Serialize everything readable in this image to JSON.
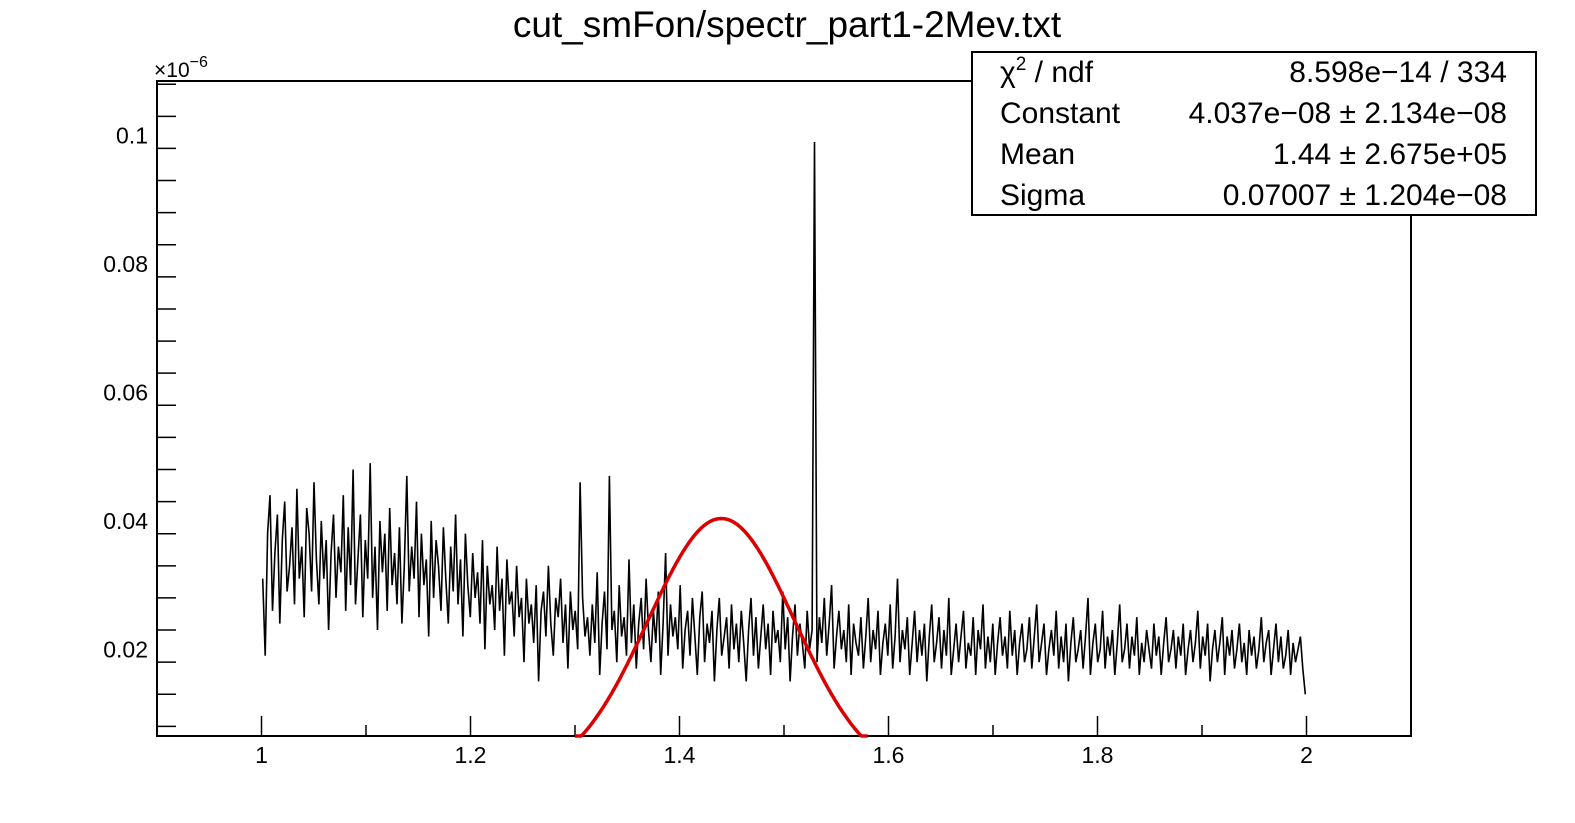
{
  "chart_data": {
    "type": "line",
    "title": "cut_smFon/spectr_part1-2Mev.txt",
    "xlabel": "",
    "ylabel": "",
    "xlim": [
      0.9,
      2.1
    ],
    "ylim": [
      0.0065,
      0.1085
    ],
    "y_exponent_label": "×10",
    "y_exponent": "−6",
    "x_ticks": [
      {
        "value": 1.0,
        "label": "1"
      },
      {
        "value": 1.2,
        "label": "1.2"
      },
      {
        "value": 1.4,
        "label": "1.4"
      },
      {
        "value": 1.6,
        "label": "1.6"
      },
      {
        "value": 1.8,
        "label": "1.8"
      },
      {
        "value": 2.0,
        "label": "2"
      }
    ],
    "y_ticks": [
      {
        "value": 0.02,
        "label": "0.02"
      },
      {
        "value": 0.04,
        "label": "0.04"
      },
      {
        "value": 0.06,
        "label": "0.06"
      },
      {
        "value": 0.08,
        "label": "0.08"
      },
      {
        "value": 0.1,
        "label": "0.1"
      }
    ],
    "grid": false,
    "series": [
      {
        "kind": "histogram",
        "color": "#000000",
        "x_start": 1.0,
        "x_end": 2.0,
        "values": [
          0.031,
          0.019,
          0.038,
          0.044,
          0.026,
          0.035,
          0.041,
          0.024,
          0.037,
          0.043,
          0.029,
          0.033,
          0.039,
          0.027,
          0.045,
          0.031,
          0.036,
          0.025,
          0.042,
          0.038,
          0.029,
          0.046,
          0.034,
          0.027,
          0.04,
          0.031,
          0.037,
          0.023,
          0.035,
          0.041,
          0.028,
          0.036,
          0.032,
          0.044,
          0.026,
          0.039,
          0.03,
          0.048,
          0.027,
          0.034,
          0.041,
          0.025,
          0.037,
          0.031,
          0.049,
          0.028,
          0.036,
          0.023,
          0.04,
          0.032,
          0.038,
          0.026,
          0.042,
          0.03,
          0.035,
          0.027,
          0.039,
          0.024,
          0.033,
          0.047,
          0.029,
          0.036,
          0.031,
          0.043,
          0.025,
          0.038,
          0.03,
          0.034,
          0.022,
          0.04,
          0.028,
          0.037,
          0.033,
          0.026,
          0.039,
          0.031,
          0.024,
          0.036,
          0.029,
          0.041,
          0.027,
          0.034,
          0.022,
          0.038,
          0.03,
          0.025,
          0.035,
          0.028,
          0.032,
          0.024,
          0.037,
          0.02,
          0.033,
          0.027,
          0.03,
          0.023,
          0.036,
          0.026,
          0.031,
          0.019,
          0.034,
          0.027,
          0.029,
          0.022,
          0.033,
          0.025,
          0.028,
          0.018,
          0.031,
          0.024,
          0.027,
          0.021,
          0.03,
          0.015,
          0.026,
          0.029,
          0.022,
          0.033,
          0.024,
          0.019,
          0.028,
          0.025,
          0.031,
          0.021,
          0.027,
          0.017,
          0.029,
          0.023,
          0.026,
          0.02,
          0.046,
          0.028,
          0.022,
          0.025,
          0.019,
          0.027,
          0.021,
          0.032,
          0.016,
          0.024,
          0.029,
          0.02,
          0.047,
          0.023,
          0.026,
          0.018,
          0.03,
          0.022,
          0.025,
          0.019,
          0.034,
          0.021,
          0.027,
          0.017,
          0.024,
          0.028,
          0.02,
          0.031,
          0.023,
          0.018,
          0.026,
          0.021,
          0.029,
          0.016,
          0.024,
          0.035,
          0.019,
          0.027,
          0.022,
          0.025,
          0.02,
          0.03,
          0.017,
          0.023,
          0.026,
          0.019,
          0.028,
          0.022,
          0.016,
          0.025,
          0.029,
          0.018,
          0.024,
          0.021,
          0.026,
          0.015,
          0.023,
          0.028,
          0.019,
          0.022,
          0.025,
          0.017,
          0.027,
          0.02,
          0.024,
          0.018,
          0.026,
          0.021,
          0.015,
          0.023,
          0.028,
          0.019,
          0.025,
          0.017,
          0.022,
          0.027,
          0.02,
          0.024,
          0.016,
          0.026,
          0.021,
          0.023,
          0.018,
          0.029,
          0.02,
          0.025,
          0.015,
          0.022,
          0.027,
          0.019,
          0.024,
          0.021,
          0.017,
          0.026,
          0.02,
          0.023,
          0.099,
          0.018,
          0.025,
          0.021,
          0.028,
          0.019,
          0.024,
          0.03,
          0.017,
          0.022,
          0.026,
          0.02,
          0.023,
          0.018,
          0.027,
          0.016,
          0.024,
          0.021,
          0.019,
          0.025,
          0.017,
          0.022,
          0.028,
          0.018,
          0.023,
          0.02,
          0.026,
          0.016,
          0.021,
          0.024,
          0.019,
          0.027,
          0.017,
          0.022,
          0.031,
          0.018,
          0.023,
          0.02,
          0.025,
          0.016,
          0.021,
          0.026,
          0.018,
          0.023,
          0.019,
          0.024,
          0.015,
          0.022,
          0.027,
          0.018,
          0.021,
          0.025,
          0.017,
          0.023,
          0.019,
          0.028,
          0.016,
          0.02,
          0.024,
          0.018,
          0.022,
          0.026,
          0.017,
          0.021,
          0.019,
          0.025,
          0.016,
          0.023,
          0.02,
          0.027,
          0.017,
          0.022,
          0.018,
          0.024,
          0.016,
          0.021,
          0.025,
          0.019,
          0.022,
          0.017,
          0.026,
          0.019,
          0.023,
          0.016,
          0.021,
          0.024,
          0.018,
          0.02,
          0.025,
          0.017,
          0.022,
          0.027,
          0.018,
          0.021,
          0.024,
          0.016,
          0.02,
          0.023,
          0.019,
          0.026,
          0.017,
          0.022,
          0.018,
          0.024,
          0.015,
          0.021,
          0.025,
          0.018,
          0.02,
          0.023,
          0.017,
          0.022,
          0.028,
          0.016,
          0.021,
          0.024,
          0.018,
          0.02,
          0.026,
          0.017,
          0.022,
          0.019,
          0.023,
          0.016,
          0.021,
          0.027,
          0.018,
          0.02,
          0.024,
          0.017,
          0.022,
          0.019,
          0.025,
          0.016,
          0.021,
          0.018,
          0.023,
          0.02,
          0.017,
          0.024,
          0.019,
          0.022,
          0.016,
          0.021,
          0.025,
          0.018,
          0.02,
          0.023,
          0.017,
          0.022,
          0.019,
          0.024,
          0.016,
          0.02,
          0.023,
          0.018,
          0.021,
          0.026,
          0.017,
          0.022,
          0.019,
          0.024,
          0.015,
          0.02,
          0.023,
          0.018,
          0.021,
          0.025,
          0.016,
          0.022,
          0.019,
          0.023,
          0.017,
          0.02,
          0.024,
          0.018,
          0.021,
          0.016,
          0.023,
          0.019,
          0.022,
          0.017,
          0.02,
          0.025,
          0.018,
          0.021,
          0.023,
          0.016,
          0.02,
          0.024,
          0.018,
          0.022,
          0.017,
          0.019,
          0.023,
          0.016,
          0.021,
          0.018,
          0.02,
          0.022,
          0.017,
          0.013
        ]
      },
      {
        "kind": "gaussian-fit",
        "color": "#dd0000",
        "x_from": 1.3,
        "x_to": 1.58,
        "constant": 0.04037,
        "mean": 1.44,
        "sigma": 0.07007
      }
    ]
  },
  "stats": {
    "rows": [
      {
        "label_html_name": "chi2",
        "label_prefix": "χ",
        "label_sup": "2",
        "label_suffix": " / ndf",
        "value": "8.598e−14 / 334"
      },
      {
        "label_prefix": "Constant",
        "value": "4.037e−08 ± 2.134e−08"
      },
      {
        "label_prefix": "Mean",
        "value": "1.44 ± 2.675e+05"
      },
      {
        "label_prefix": "Sigma",
        "value": "0.07007 ± 1.204e−08"
      }
    ]
  }
}
